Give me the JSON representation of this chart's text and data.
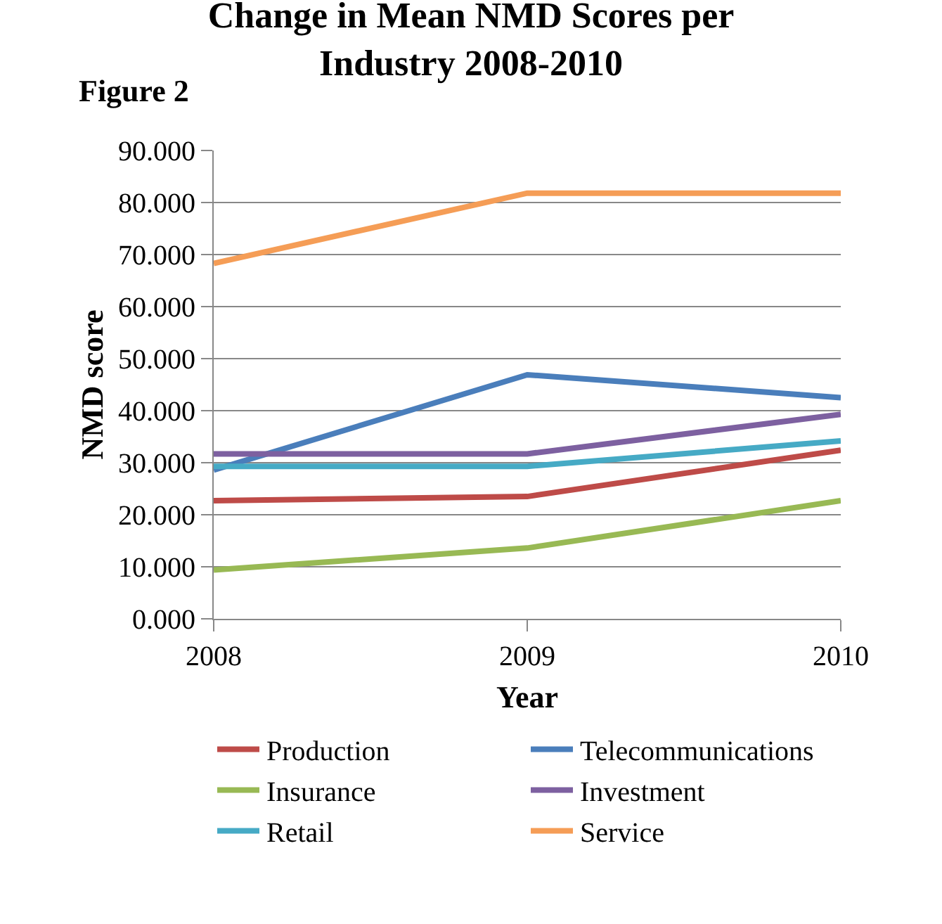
{
  "chart_data": {
    "type": "line",
    "title": "Change in Mean NMD Scores per\nIndustry 2008-2010",
    "xlabel": "Year",
    "ylabel": "NMD score",
    "annotations": [
      "Figure 2"
    ],
    "categories": [
      "2008",
      "2009",
      "2010"
    ],
    "series": [
      {
        "name": "Production",
        "color": "#be4b48",
        "values": [
          22.7,
          23.5,
          32.4
        ]
      },
      {
        "name": "Telecommunications",
        "color": "#4a7ebb",
        "values": [
          28.6,
          46.9,
          42.5
        ]
      },
      {
        "name": "Insurance",
        "color": "#98b954",
        "values": [
          9.4,
          13.6,
          22.7
        ]
      },
      {
        "name": "Investment",
        "color": "#7d60a0",
        "values": [
          31.7,
          31.7,
          39.3
        ]
      },
      {
        "name": "Retail",
        "color": "#46aac5",
        "values": [
          29.3,
          29.3,
          34.2
        ]
      },
      {
        "name": "Service",
        "color": "#f59d56",
        "values": [
          68.3,
          81.8,
          81.8
        ]
      }
    ],
    "ylim": [
      0,
      90
    ],
    "yticks": [
      {
        "value": 0,
        "label": "0.000"
      },
      {
        "value": 10,
        "label": "10.000"
      },
      {
        "value": 20,
        "label": "20.000"
      },
      {
        "value": 30,
        "label": "30.000"
      },
      {
        "value": 40,
        "label": "40.000"
      },
      {
        "value": 50,
        "label": "50.000"
      },
      {
        "value": 60,
        "label": "60.000"
      },
      {
        "value": 70,
        "label": "70.000"
      },
      {
        "value": 80,
        "label": "80.000"
      },
      {
        "value": 90,
        "label": "90.000"
      }
    ],
    "grid": "y",
    "legend": "bottom",
    "marker": "none",
    "line_style": "solid"
  }
}
